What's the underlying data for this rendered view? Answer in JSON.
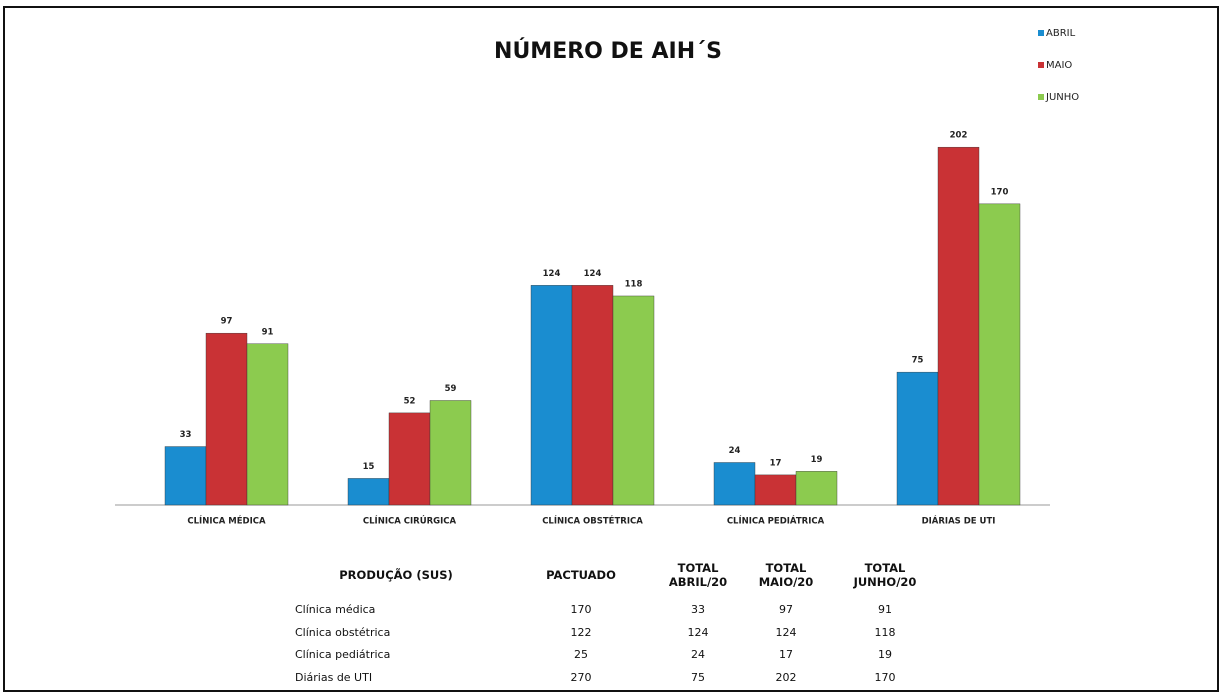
{
  "chart_data": {
    "type": "bar",
    "title": "NÚMERO DE AIH´S",
    "categories": [
      "CLÍNICA MÉDICA",
      "CLÍNICA CIRÚRGICA",
      "CLÍNICA OBSTÉTRICA",
      "CLÍNICA PEDIÁTRICA",
      "DIÁRIAS DE UTI"
    ],
    "series": [
      {
        "name": "ABRIL",
        "color": "#1a8dd0",
        "values": [
          33,
          15,
          124,
          24,
          75
        ]
      },
      {
        "name": "MAIO",
        "color": "#c93235",
        "values": [
          97,
          52,
          124,
          17,
          202
        ]
      },
      {
        "name": "JUNHO",
        "color": "#8ccb4f",
        "values": [
          91,
          59,
          118,
          19,
          170
        ]
      }
    ],
    "ylim": [
      0,
      210
    ],
    "legend": "top-right"
  },
  "table": {
    "header": [
      "PRODUÇÃO (SUS)",
      "PACTUADO",
      "TOTAL\nABRIL/20",
      "TOTAL\nMAIO/20",
      "TOTAL\nJUNHO/20"
    ],
    "rows": [
      [
        "Clínica médica",
        170,
        33,
        97,
        91
      ],
      [
        "Clínica obstétrica",
        122,
        124,
        124,
        118
      ],
      [
        "Clínica pediátrica",
        25,
        24,
        17,
        19
      ],
      [
        "Diárias de UTI",
        270,
        75,
        202,
        170
      ]
    ]
  }
}
